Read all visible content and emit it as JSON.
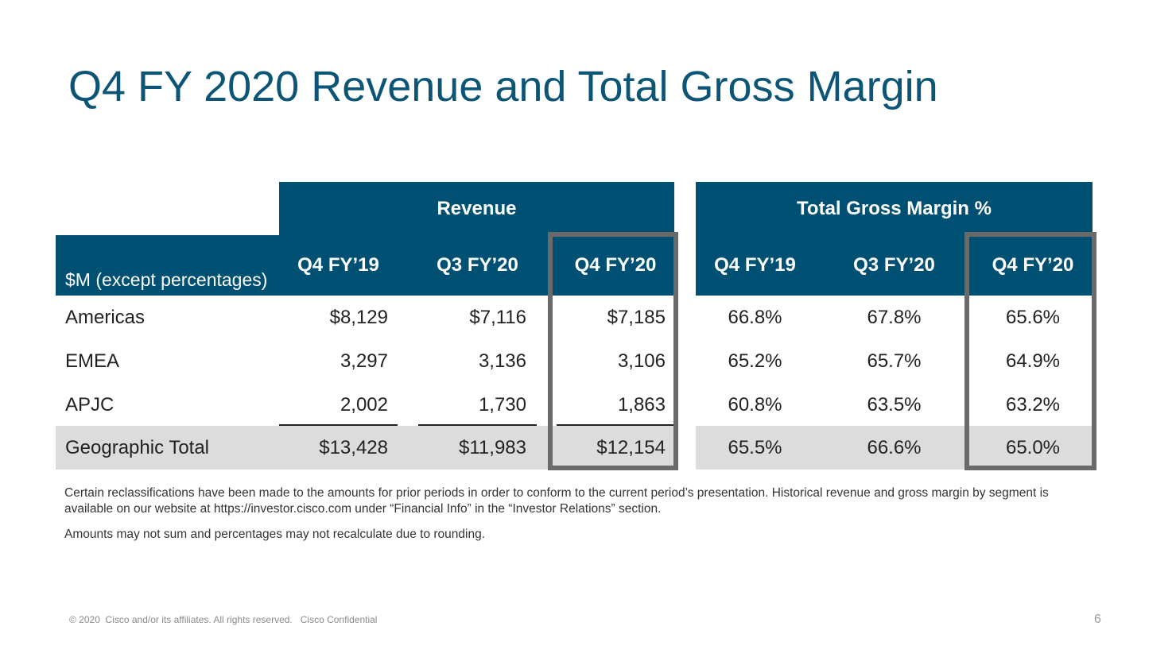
{
  "title": "Q4 FY 2020 Revenue and Total Gross Margin",
  "table": {
    "row_header_label": "$M (except percentages)",
    "groups": {
      "revenue": "Revenue",
      "margin": "Total Gross Margin %"
    },
    "columns": [
      "Q4 FY’19",
      "Q3 FY’20",
      "Q4 FY’20",
      "Q4 FY’19",
      "Q3 FY’20",
      "Q4 FY’20"
    ],
    "rows": [
      {
        "label": "Americas",
        "revenue": [
          "$8,129",
          "$7,116",
          "$7,185"
        ],
        "margin": [
          "66.8%",
          "67.8%",
          "65.6%"
        ]
      },
      {
        "label": "EMEA",
        "revenue": [
          "3,297",
          "3,136",
          "3,106"
        ],
        "margin": [
          "65.2%",
          "65.7%",
          "64.9%"
        ]
      },
      {
        "label": "APJC",
        "revenue": [
          "2,002",
          "1,730",
          "1,863"
        ],
        "margin": [
          "60.8%",
          "63.5%",
          "63.2%"
        ]
      },
      {
        "label": "Geographic Total",
        "revenue": [
          "$13,428",
          "$11,983",
          "$12,154"
        ],
        "margin": [
          "65.5%",
          "66.6%",
          "65.0%"
        ]
      }
    ]
  },
  "notes": {
    "reclass": "Certain reclassifications have been made to the amounts for prior periods in order to conform to the current period’s presentation. Historical revenue and gross margin by segment is available on our website at https://investor.cisco.com under “Financial Info” in the “Investor Relations” section.",
    "rounding": "Amounts may not sum and percentages may not recalculate due to rounding."
  },
  "footer": {
    "copyright": "© 2020  Cisco and/or its affiliates. All rights reserved.   Cisco Confidential",
    "page": "6"
  },
  "colors": {
    "title": "#0d5577",
    "header_bg": "#005073",
    "total_row_bg": "#dcdcdc",
    "highlight_border": "#6a6a6a"
  }
}
